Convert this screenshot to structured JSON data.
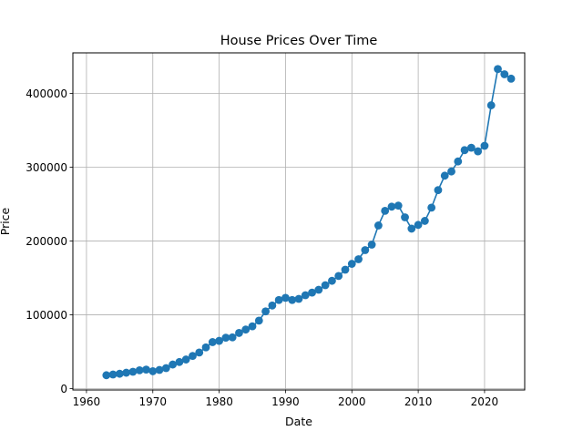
{
  "chart_data": {
    "type": "line",
    "title": "House Prices Over Time",
    "xlabel": "Date",
    "ylabel": "Price",
    "xlim": [
      1957.95,
      2026.05
    ],
    "ylim": [
      -2000,
      455000
    ],
    "xticks": [
      1960,
      1970,
      1980,
      1990,
      2000,
      2010,
      2020
    ],
    "yticks": [
      0,
      100000,
      200000,
      300000,
      400000
    ],
    "grid": true,
    "marker": "circle",
    "color": "#1f77b4",
    "series": [
      {
        "x": [
          1963,
          1964,
          1965,
          1966,
          1967,
          1968,
          1969,
          1970,
          1971,
          1972,
          1973,
          1974,
          1975,
          1976,
          1977,
          1978,
          1979,
          1980,
          1981,
          1982,
          1983,
          1984,
          1985,
          1986,
          1987,
          1988,
          1989,
          1990,
          1991,
          1992,
          1993,
          1994,
          1995,
          1996,
          1997,
          1998,
          1999,
          2000,
          2001,
          2002,
          2003,
          2004,
          2005,
          2006,
          2007,
          2008,
          2009,
          2010,
          2011,
          2012,
          2013,
          2014,
          2015,
          2016,
          2017,
          2018,
          2019,
          2020,
          2021,
          2022,
          2023,
          2024
        ],
        "y": [
          18000,
          19000,
          20000,
          21400,
          22700,
          24700,
          25600,
          23400,
          25200,
          27600,
          32500,
          35900,
          39300,
          44200,
          48800,
          55700,
          62900,
          64600,
          68900,
          69300,
          75300,
          79900,
          84300,
          92000,
          104500,
          112500,
          120000,
          122900,
          120000,
          121500,
          126500,
          130000,
          133900,
          140000,
          146000,
          152500,
          161000,
          169000,
          175200,
          187600,
          195000,
          221000,
          240900,
          246500,
          247900,
          232100,
          216700,
          221800,
          227200,
          245200,
          268900,
          288500,
          294200,
          307800,
          323100,
          326400,
          321500,
          329000,
          383900,
          433100,
          426000,
          420000
        ]
      }
    ]
  }
}
